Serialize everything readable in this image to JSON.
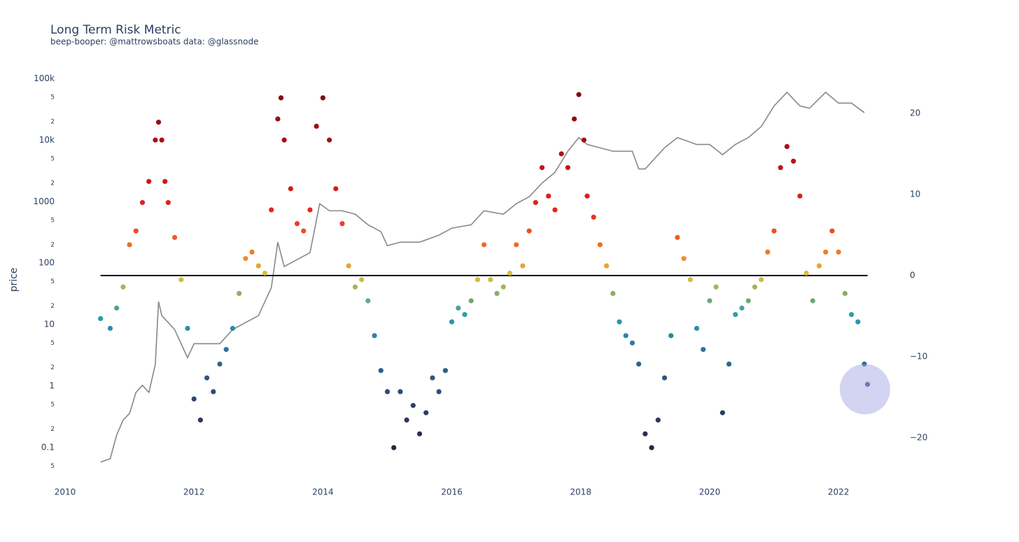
{
  "chart_data": {
    "type": "scatter",
    "title": "Long Term Risk Metric",
    "subtitle": "beep-booper: @mattrowsboats data: @glassnode",
    "y_label": "price",
    "xlim": [
      2010,
      2022.78
    ],
    "xticks": [
      2010,
      2012,
      2014,
      2016,
      2018,
      2020,
      2022
    ],
    "ylim": [
      0.027,
      180000
    ],
    "y_log": true,
    "yticks": [
      {
        "value": 0.05,
        "label": "5"
      },
      0.1,
      {
        "value": 0.2,
        "label": "2"
      },
      {
        "value": 0.5,
        "label": "5"
      },
      1,
      2,
      5,
      10,
      {
        "value": 20,
        "label": "2"
      },
      {
        "value": 50,
        "label": "5"
      },
      100,
      {
        "value": 200,
        "label": "2"
      },
      {
        "value": 500,
        "label": "5"
      },
      1000,
      {
        "value": 2000,
        "label": "2"
      },
      {
        "value": 5000,
        "label": "5"
      },
      {
        "value": 10000,
        "label": "10k"
      },
      {
        "value": 20000,
        "label": "2"
      },
      {
        "value": 50000,
        "label": "5"
      },
      {
        "value": 100000,
        "label": "100k"
      }
    ],
    "y2lim": [
      -25.5,
      26.2
    ],
    "y2ticks": [
      {
        "value": -20,
        "label": "−20"
      },
      {
        "value": -10,
        "label": "−10"
      },
      0,
      10,
      20
    ],
    "grid": false,
    "series": [
      {
        "mode": "line",
        "axis": "y",
        "color": "#888888",
        "x": [
          2010.55,
          2010.7,
          2010.8,
          2010.9,
          2011.0,
          2011.1,
          2011.2,
          2011.3,
          2011.4,
          2011.45,
          2011.5,
          2011.6,
          2011.7,
          2011.8,
          2011.9,
          2012.0,
          2012.2,
          2012.4,
          2012.6,
          2012.8,
          2013.0,
          2013.2,
          2013.3,
          2013.4,
          2013.6,
          2013.8,
          2013.95,
          2014.1,
          2014.3,
          2014.5,
          2014.7,
          2014.9,
          2015.0,
          2015.2,
          2015.5,
          2015.8,
          2016.0,
          2016.3,
          2016.5,
          2016.8,
          2017.0,
          2017.2,
          2017.4,
          2017.6,
          2017.8,
          2017.97,
          2018.1,
          2018.3,
          2018.5,
          2018.8,
          2018.9,
          2019.0,
          2019.3,
          2019.5,
          2019.8,
          2020.0,
          2020.2,
          2020.4,
          2020.6,
          2020.8,
          2021.0,
          2021.2,
          2021.4,
          2021.55,
          2021.8,
          2022.0,
          2022.2,
          2022.4
        ],
        "values": [
          0.058,
          0.066,
          0.16,
          0.28,
          0.36,
          0.79,
          1.03,
          0.79,
          2.25,
          23.7,
          14,
          10.8,
          8.3,
          4.9,
          2.9,
          4.9,
          4.9,
          4.9,
          8.3,
          10.8,
          14,
          40,
          219,
          88,
          114,
          148,
          925,
          710,
          710,
          625,
          420,
          325,
          192,
          219,
          219,
          285,
          370,
          420,
          710,
          625,
          925,
          1200,
          2000,
          3000,
          6600,
          11000,
          8500,
          7500,
          6600,
          6600,
          3400,
          3400,
          7500,
          11000,
          8500,
          8500,
          5800,
          8500,
          11000,
          16600,
          36000,
          60000,
          36000,
          33000,
          60000,
          40000,
          40000,
          28000
        ]
      },
      {
        "mode": "markers",
        "axis": "y2",
        "x": [
          2010.55,
          2010.7,
          2010.8,
          2010.9,
          2011.0,
          2011.1,
          2011.2,
          2011.3,
          2011.4,
          2011.45,
          2011.5,
          2011.55,
          2011.6,
          2011.7,
          2011.8,
          2011.9,
          2012.0,
          2012.1,
          2012.2,
          2012.3,
          2012.4,
          2012.5,
          2012.6,
          2012.7,
          2012.8,
          2012.9,
          2013.0,
          2013.1,
          2013.2,
          2013.3,
          2013.35,
          2013.4,
          2013.5,
          2013.6,
          2013.7,
          2013.8,
          2013.9,
          2014.0,
          2014.1,
          2014.2,
          2014.3,
          2014.4,
          2014.5,
          2014.6,
          2014.7,
          2014.8,
          2014.9,
          2015.0,
          2015.1,
          2015.2,
          2015.3,
          2015.4,
          2015.5,
          2015.6,
          2015.7,
          2015.8,
          2015.9,
          2016.0,
          2016.1,
          2016.2,
          2016.3,
          2016.4,
          2016.5,
          2016.6,
          2016.7,
          2016.8,
          2016.9,
          2017.0,
          2017.1,
          2017.2,
          2017.3,
          2017.4,
          2017.5,
          2017.6,
          2017.7,
          2017.8,
          2017.9,
          2017.97,
          2018.05,
          2018.1,
          2018.2,
          2018.3,
          2018.4,
          2018.5,
          2018.6,
          2018.7,
          2018.8,
          2018.9,
          2019.0,
          2019.1,
          2019.2,
          2019.3,
          2019.4,
          2019.5,
          2019.6,
          2019.7,
          2019.8,
          2019.9,
          2020.0,
          2020.1,
          2020.2,
          2020.3,
          2020.4,
          2020.5,
          2020.6,
          2020.7,
          2020.8,
          2020.9,
          2021.0,
          2021.1,
          2021.2,
          2021.3,
          2021.4,
          2021.5,
          2021.6,
          2021.7,
          2021.8,
          2021.9,
          2022.0,
          2022.1,
          2022.2,
          2022.3,
          2022.4,
          2022.45
        ],
        "values": [
          -5.3,
          -6.5,
          -4,
          -1.4,
          3.8,
          5.5,
          9,
          11.6,
          16.7,
          18.9,
          16.7,
          11.6,
          9,
          4.7,
          -0.5,
          -6.5,
          -15.2,
          -17.8,
          -12.6,
          -14.3,
          -10.9,
          -9.1,
          -6.5,
          -2.2,
          2.1,
          2.9,
          1.2,
          0.3,
          8.1,
          19.3,
          21.9,
          16.7,
          10.7,
          6.4,
          5.5,
          8.1,
          18.4,
          21.9,
          16.7,
          10.7,
          6.4,
          1.2,
          -1.4,
          -0.5,
          -3.1,
          -7.4,
          -11.7,
          -14.3,
          -21.2,
          -14.3,
          -17.8,
          -16,
          -19.5,
          -16.9,
          -12.6,
          -14.3,
          -11.7,
          -5.7,
          -4,
          -4.8,
          -3.1,
          -0.5,
          3.8,
          -0.5,
          -2.2,
          -1.4,
          0.3,
          3.8,
          1.2,
          5.5,
          9,
          13.3,
          9.8,
          8.1,
          15,
          13.3,
          19.3,
          22.3,
          16.7,
          9.8,
          7.2,
          3.8,
          1.2,
          -2.2,
          -5.7,
          -7.4,
          -8.3,
          -10.9,
          -19.5,
          -21.2,
          -17.8,
          -12.6,
          -7.4,
          4.7,
          2.1,
          -0.5,
          -6.5,
          -9.1,
          -3.1,
          -1.4,
          -16.9,
          -10.9,
          -4.8,
          -4,
          -3.1,
          -1.4,
          -0.5,
          2.9,
          5.5,
          13.3,
          15.9,
          14.1,
          9.8,
          0.3,
          -3.1,
          1.2,
          2.9,
          5.5,
          2.9,
          -2.2,
          -4.8,
          -5.7,
          -10.9,
          -13.4
        ]
      }
    ],
    "colorscale": [
      [
        -22,
        "#2b1d42"
      ],
      [
        -12,
        "#2b5b86"
      ],
      [
        -5,
        "#2a9bb1"
      ],
      [
        -2,
        "#8fb05e"
      ],
      [
        0,
        "#dcc23a"
      ],
      [
        3,
        "#f27a22"
      ],
      [
        8,
        "#e8231e"
      ],
      [
        15,
        "#b31212"
      ],
      [
        22,
        "#7d0a12"
      ]
    ],
    "hline": {
      "y": 0,
      "axis": "y2",
      "color": "#000000"
    },
    "highlight": {
      "x": 2022.41,
      "y": -14,
      "axis": "y2",
      "color": "#a8a8e6"
    }
  }
}
